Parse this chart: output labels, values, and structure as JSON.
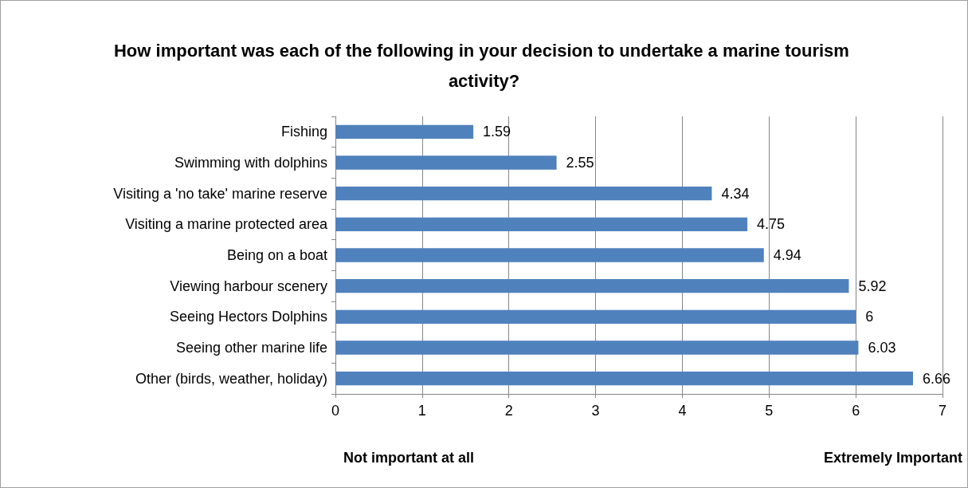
{
  "chart_data": {
    "type": "bar",
    "orientation": "horizontal",
    "title": "How important was each of the following in your decision to undertake a marine tourism activity?",
    "categories": [
      "Fishing",
      "Swimming with dolphins",
      "Visiting a 'no take' marine reserve",
      "Visiting a marine protected area",
      "Being on a boat",
      "Viewing harbour scenery",
      "Seeing Hectors Dolphins",
      "Seeing other marine life",
      "Other (birds, weather, holiday)"
    ],
    "values": [
      1.59,
      2.55,
      4.34,
      4.75,
      4.94,
      5.92,
      6,
      6.03,
      6.66
    ],
    "color": "#4f81bd",
    "xlim": [
      0,
      7
    ],
    "xticks": [
      0,
      1,
      2,
      3,
      4,
      5,
      6,
      7
    ],
    "grid": "x",
    "data_labels": true,
    "annotations": [
      "Not important at all",
      "Extremely Important"
    ]
  }
}
